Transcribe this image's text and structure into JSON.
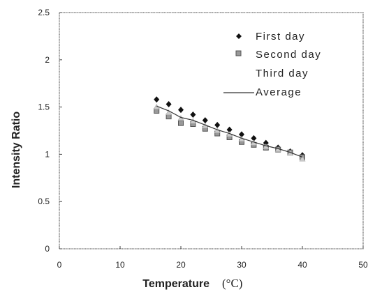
{
  "chart_data": {
    "type": "scatter",
    "title": "",
    "xlabel": "Temperature",
    "xunit": "(°C)",
    "ylabel": "Intensity Ratio",
    "xlim": [
      0,
      50
    ],
    "ylim": [
      0,
      2.5
    ],
    "xticks": [
      0,
      10,
      20,
      30,
      40,
      50
    ],
    "yticks": [
      0,
      0.5,
      1,
      1.5,
      2,
      2.5
    ],
    "xtick_labels": [
      "0",
      "10",
      "20",
      "30",
      "40",
      "50"
    ],
    "ytick_labels": [
      "0",
      "0.5",
      "1",
      "1.5",
      "2",
      "2.5"
    ],
    "grid": false,
    "legend_position": "top-right",
    "series": [
      {
        "name": "First day",
        "marker": "diamond",
        "color": "#111111",
        "x": [
          16,
          18,
          20,
          22,
          24,
          26,
          28,
          30,
          32,
          34,
          36,
          38,
          40
        ],
        "y": [
          1.58,
          1.53,
          1.47,
          1.42,
          1.36,
          1.31,
          1.26,
          1.21,
          1.17,
          1.12,
          1.07,
          1.03,
          0.99
        ]
      },
      {
        "name": "Second day",
        "marker": "square",
        "color": "#888888",
        "x": [
          16,
          18,
          20,
          22,
          24,
          26,
          28,
          30,
          32,
          34,
          36,
          38,
          40
        ],
        "y": [
          1.46,
          1.4,
          1.33,
          1.32,
          1.27,
          1.22,
          1.18,
          1.13,
          1.1,
          1.07,
          1.05,
          1.02,
          0.97
        ]
      },
      {
        "name": "Third day",
        "marker": "triangle",
        "color": "#cccccc",
        "x": [
          16,
          18,
          20,
          22,
          24,
          26,
          28,
          30,
          32,
          34,
          36,
          38,
          40
        ],
        "y": [
          1.5,
          1.44,
          1.38,
          1.35,
          1.3,
          1.25,
          1.21,
          1.16,
          1.12,
          1.08,
          1.05,
          1.01,
          0.95
        ]
      },
      {
        "name": "Average",
        "marker": "line",
        "color": "#333333",
        "x": [
          16,
          18,
          20,
          22,
          24,
          26,
          28,
          30,
          32,
          34,
          36,
          38,
          40
        ],
        "y": [
          1.51,
          1.46,
          1.39,
          1.36,
          1.31,
          1.26,
          1.22,
          1.17,
          1.13,
          1.09,
          1.06,
          1.02,
          0.97
        ]
      }
    ]
  }
}
